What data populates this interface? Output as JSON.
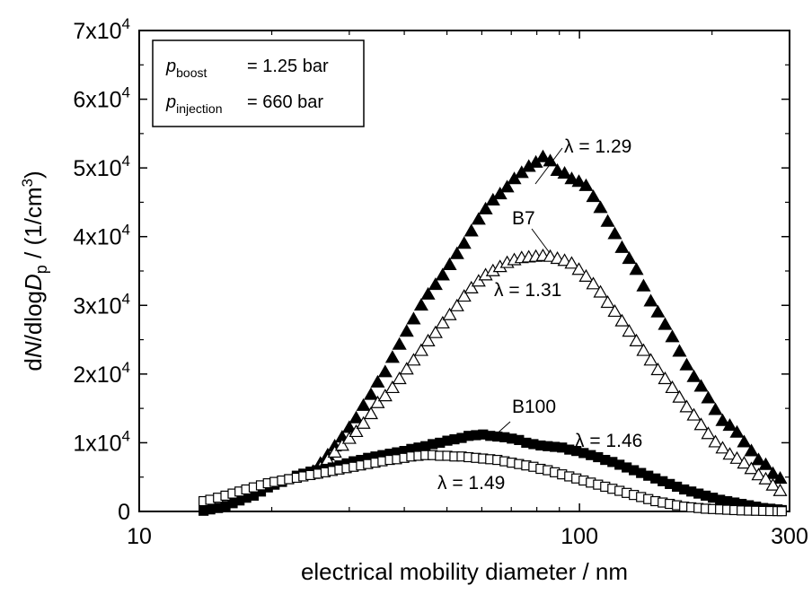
{
  "chart_data": {
    "type": "scatter",
    "title": "",
    "xlabel": "electrical mobility diameter / nm",
    "ylabel": {
      "prefix": "d",
      "N": "N",
      "mid": "/dlog",
      "D": "D",
      "sub": "p",
      "suffix": " / (1/cm",
      "sup": "3",
      "close": ")"
    },
    "x_scale": "log",
    "xlim": [
      10,
      300
    ],
    "ylim": [
      0,
      70000
    ],
    "x_ticks": [
      {
        "value": 10,
        "label": "10"
      },
      {
        "value": 100,
        "label": "100"
      },
      {
        "value": 300,
        "label": "300"
      }
    ],
    "y_ticks": [
      {
        "value": 0,
        "mant": "0",
        "exp": ""
      },
      {
        "value": 10000,
        "mant": "1x10",
        "exp": "4"
      },
      {
        "value": 20000,
        "mant": "2x10",
        "exp": "4"
      },
      {
        "value": 30000,
        "mant": "3x10",
        "exp": "4"
      },
      {
        "value": 40000,
        "mant": "4x10",
        "exp": "4"
      },
      {
        "value": 50000,
        "mant": "5x10",
        "exp": "4"
      },
      {
        "value": 60000,
        "mant": "6x10",
        "exp": "4"
      },
      {
        "value": 70000,
        "mant": "7x10",
        "exp": "4"
      }
    ],
    "legend_box": {
      "row1": {
        "sym": "p",
        "sub": "boost",
        "val": "= 1.25 bar"
      },
      "row2": {
        "sym": "p",
        "sub": "injection",
        "val": "= 660 bar"
      }
    },
    "annotations": {
      "l129": "λ = 1.29",
      "b7": "B7",
      "l131": "λ = 1.31",
      "b100": "B100",
      "l146": "λ = 1.46",
      "l149": "λ = 1.49"
    },
    "series": [
      {
        "marker": "triangle-filled",
        "color": "#000000",
        "x": [
          24.8,
          25.8,
          26.8,
          27.8,
          28.9,
          30.0,
          31.1,
          32.3,
          33.6,
          34.8,
          36.2,
          37.6,
          39.0,
          40.5,
          42.0,
          43.7,
          45.3,
          47.1,
          48.9,
          50.7,
          52.7,
          54.7,
          56.8,
          59.0,
          61.2,
          63.6,
          66.0,
          68.5,
          71.1,
          73.9,
          76.7,
          79.6,
          82.6,
          85.8,
          89.1,
          92.5,
          96.0,
          99.7,
          103.5,
          107.5,
          111.6,
          115.9,
          120.3,
          124.9,
          129.7,
          134.7,
          139.8,
          145.2,
          150.7,
          156.5,
          162.5,
          168.7,
          175.2,
          181.9,
          188.9,
          196.1,
          203.6,
          211.4,
          219.5,
          227.9,
          236.6,
          245.7,
          255.1,
          264.9,
          275.0,
          285.6
        ],
        "y": [
          5800,
          7000,
          8200,
          9500,
          10800,
          12200,
          13600,
          15400,
          17000,
          18800,
          20300,
          22400,
          24300,
          26200,
          28000,
          30000,
          31600,
          33000,
          34400,
          35900,
          37500,
          39000,
          40800,
          42500,
          44000,
          45300,
          46200,
          47200,
          48400,
          49300,
          50200,
          50800,
          51600,
          51000,
          49600,
          49200,
          48400,
          48000,
          47400,
          45800,
          44200,
          42200,
          40400,
          38400,
          36800,
          35200,
          32800,
          30600,
          29000,
          27200,
          25400,
          23300,
          21300,
          19600,
          18200,
          16500,
          14800,
          13200,
          12500,
          11500,
          10100,
          8800,
          7500,
          6800,
          5500,
          4800
        ]
      },
      {
        "marker": "triangle-open",
        "color": "#000000",
        "x": [
          24.8,
          25.8,
          26.8,
          27.8,
          28.9,
          30.0,
          31.1,
          32.3,
          33.6,
          34.8,
          36.2,
          37.6,
          39.0,
          40.5,
          42.0,
          43.7,
          45.3,
          47.1,
          48.9,
          50.7,
          52.7,
          54.7,
          56.8,
          59.0,
          61.2,
          63.6,
          66.0,
          68.5,
          71.1,
          73.9,
          76.7,
          79.6,
          82.6,
          85.8,
          89.1,
          92.5,
          96.0,
          99.7,
          103.5,
          107.5,
          111.6,
          115.9,
          120.3,
          124.9,
          129.7,
          134.7,
          139.8,
          145.2,
          150.7,
          156.5,
          162.5,
          168.7,
          175.2,
          181.9,
          188.9,
          196.1,
          203.6,
          211.4,
          219.5,
          227.9,
          236.6,
          245.7,
          255.1,
          264.9,
          275.0,
          285.6
        ],
        "y": [
          5500,
          6400,
          7500,
          8600,
          9600,
          10600,
          11600,
          12800,
          14200,
          15800,
          16800,
          18000,
          19300,
          20700,
          22000,
          23400,
          24800,
          26000,
          27400,
          28600,
          29900,
          31300,
          32500,
          33500,
          34400,
          35000,
          35600,
          36200,
          36600,
          36900,
          37000,
          37100,
          37200,
          37100,
          36800,
          36500,
          36100,
          35200,
          34200,
          33100,
          31900,
          30400,
          29100,
          27700,
          26200,
          24800,
          23400,
          22000,
          20600,
          19300,
          18000,
          16600,
          15200,
          14000,
          12600,
          11300,
          10100,
          9200,
          8300,
          7700,
          7000,
          6200,
          5300,
          4700,
          3800,
          3000
        ]
      },
      {
        "marker": "square-filled",
        "color": "#000000",
        "x": [
          14.0,
          14.5,
          15.1,
          15.7,
          16.3,
          16.9,
          17.5,
          18.2,
          18.9,
          19.6,
          20.3,
          21.1,
          21.9,
          22.8,
          23.6,
          24.5,
          25.5,
          26.5,
          27.5,
          28.5,
          29.6,
          30.7,
          31.9,
          33.1,
          34.4,
          35.7,
          37.1,
          38.5,
          40.0,
          41.5,
          43.1,
          44.7,
          46.4,
          48.2,
          50.1,
          52.0,
          54.0,
          56.0,
          58.2,
          60.4,
          62.7,
          65.1,
          67.6,
          70.2,
          72.9,
          75.7,
          78.6,
          81.6,
          84.7,
          87.9,
          91.3,
          94.8,
          98.4,
          102.2,
          106.1,
          110.2,
          114.4,
          118.8,
          123.3,
          128.0,
          132.9,
          138.0,
          143.3,
          148.8,
          154.5,
          160.4,
          166.5,
          172.9,
          179.5,
          186.4,
          193.5,
          200.9,
          208.6,
          216.6,
          224.9,
          233.5,
          242.5,
          251.8,
          261.4,
          271.4,
          281.8,
          288.0
        ],
        "y": [
          100,
          300,
          500,
          800,
          1200,
          1600,
          2000,
          2300,
          2900,
          3500,
          3900,
          4300,
          4700,
          5200,
          5500,
          5800,
          6000,
          6200,
          6400,
          6700,
          7000,
          7300,
          7500,
          7800,
          8000,
          8200,
          8400,
          8600,
          8800,
          9100,
          9300,
          9500,
          9800,
          10000,
          10300,
          10500,
          10700,
          11000,
          11100,
          11200,
          11000,
          10900,
          10800,
          10600,
          10400,
          10000,
          9800,
          9600,
          9500,
          9400,
          9300,
          9000,
          8800,
          8500,
          8200,
          7900,
          7500,
          7200,
          6800,
          6400,
          6000,
          5600,
          5200,
          4800,
          4400,
          4000,
          3600,
          3200,
          2900,
          2600,
          2300,
          2000,
          1700,
          1500,
          1300,
          1100,
          900,
          700,
          500,
          400,
          300,
          200
        ]
      },
      {
        "marker": "square-open",
        "color": "#000000",
        "x": [
          14.0,
          14.5,
          15.1,
          15.7,
          16.3,
          16.9,
          17.5,
          18.2,
          18.9,
          19.6,
          20.3,
          21.1,
          21.9,
          22.8,
          23.6,
          24.5,
          25.5,
          26.5,
          27.5,
          28.5,
          29.6,
          30.7,
          31.9,
          33.1,
          34.4,
          35.7,
          37.1,
          38.5,
          40.0,
          41.5,
          43.1,
          44.7,
          46.4,
          48.2,
          50.1,
          52.0,
          54.0,
          56.0,
          58.2,
          60.4,
          62.7,
          65.1,
          67.6,
          70.2,
          72.9,
          75.7,
          78.6,
          81.6,
          84.7,
          87.9,
          91.3,
          94.8,
          98.4,
          102.2,
          106.1,
          110.2,
          114.4,
          118.8,
          123.3,
          128.0,
          132.9,
          138.0,
          143.3,
          148.8,
          154.5,
          160.4,
          166.5,
          172.9,
          179.5,
          186.4,
          193.5,
          200.9,
          208.6,
          216.6,
          224.9,
          233.5,
          242.5,
          251.8,
          261.4,
          271.4,
          281.8,
          288.0
        ],
        "y": [
          1500,
          1700,
          2000,
          2300,
          2600,
          2900,
          3200,
          3500,
          3800,
          4100,
          4300,
          4500,
          4700,
          4900,
          5100,
          5300,
          5500,
          5700,
          5900,
          6100,
          6300,
          6500,
          6700,
          6900,
          7100,
          7300,
          7500,
          7600,
          7800,
          8000,
          8100,
          8200,
          8200,
          8100,
          8100,
          8000,
          8000,
          7900,
          7800,
          7700,
          7600,
          7500,
          7300,
          7100,
          6900,
          6700,
          6500,
          6200,
          6000,
          5700,
          5400,
          5100,
          4800,
          4500,
          4200,
          3900,
          3600,
          3300,
          3000,
          2700,
          2400,
          2100,
          1800,
          1500,
          1300,
          1100,
          900,
          700,
          600,
          500,
          400,
          350,
          300,
          250,
          200,
          150,
          120,
          100,
          80,
          60,
          50,
          40
        ]
      }
    ]
  }
}
